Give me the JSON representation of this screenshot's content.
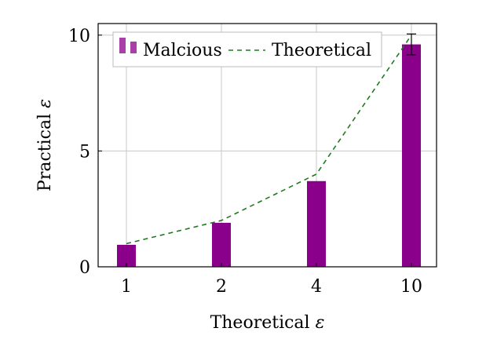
{
  "chart_data": {
    "type": "bar",
    "xlabel": "Theoretical",
    "xlabel_symbol": "ε",
    "ylabel": "Practical",
    "ylabel_symbol": "ε",
    "categories": [
      "1",
      "2",
      "4",
      "10"
    ],
    "ylim": [
      0,
      10.5
    ],
    "yticks": [
      0,
      5,
      10
    ],
    "grid": true,
    "legend_position": "top-left",
    "series": [
      {
        "name": "Malcious",
        "kind": "bar",
        "color": "#8b008b",
        "values": [
          0.95,
          1.9,
          3.7,
          9.6
        ],
        "error": [
          0,
          0,
          0,
          0.45
        ]
      },
      {
        "name": "Theoretical",
        "kind": "line",
        "style": "dashed",
        "color": "#1f7a1f",
        "values": [
          1,
          2,
          4,
          10
        ]
      }
    ]
  }
}
